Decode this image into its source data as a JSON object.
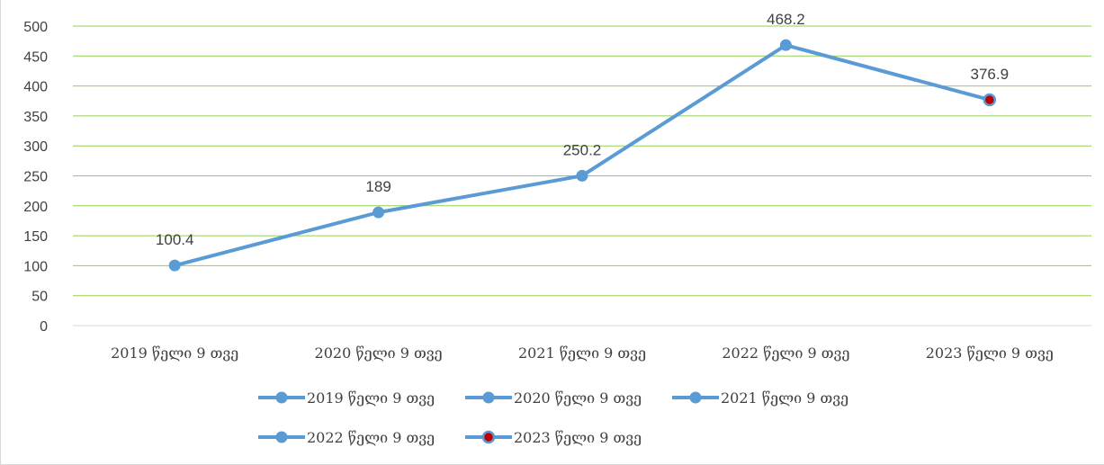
{
  "chart_data": {
    "type": "line",
    "title": "",
    "xlabel": "",
    "ylabel": "",
    "ylim": [
      0,
      500
    ],
    "yticks": [
      0,
      50,
      100,
      150,
      200,
      250,
      300,
      350,
      400,
      450,
      500
    ],
    "grid": true,
    "legend_position": "bottom",
    "categories": [
      "2019 წელი 9 თვე",
      "2020 წელი 9 თვე",
      "2021 წელი 9 თვე",
      "2022 წელი 9 თვე",
      "2023 წელი 9 თვე"
    ],
    "values": [
      100.4,
      189,
      250.2,
      468.2,
      376.9
    ],
    "data_labels": [
      "100.4",
      "189",
      "250.2",
      "468.2",
      "376.9"
    ],
    "legend": [
      {
        "label": "2019 წელი 9 თვე",
        "marker_color": "#5b9bd5"
      },
      {
        "label": "2020 წელი 9 თვე",
        "marker_color": "#5b9bd5"
      },
      {
        "label": "2021 წელი 9 თვე",
        "marker_color": "#5b9bd5"
      },
      {
        "label": "2022 წელი 9 თვე",
        "marker_color": "#5b9bd5"
      },
      {
        "label": "2023 წელი 9 თვე",
        "marker_color": "#c00000"
      }
    ],
    "colors": {
      "line": "#5b9bd5",
      "marker": "#5b9bd5",
      "highlight_marker": "#c00000",
      "gridline": "#92d050"
    }
  }
}
